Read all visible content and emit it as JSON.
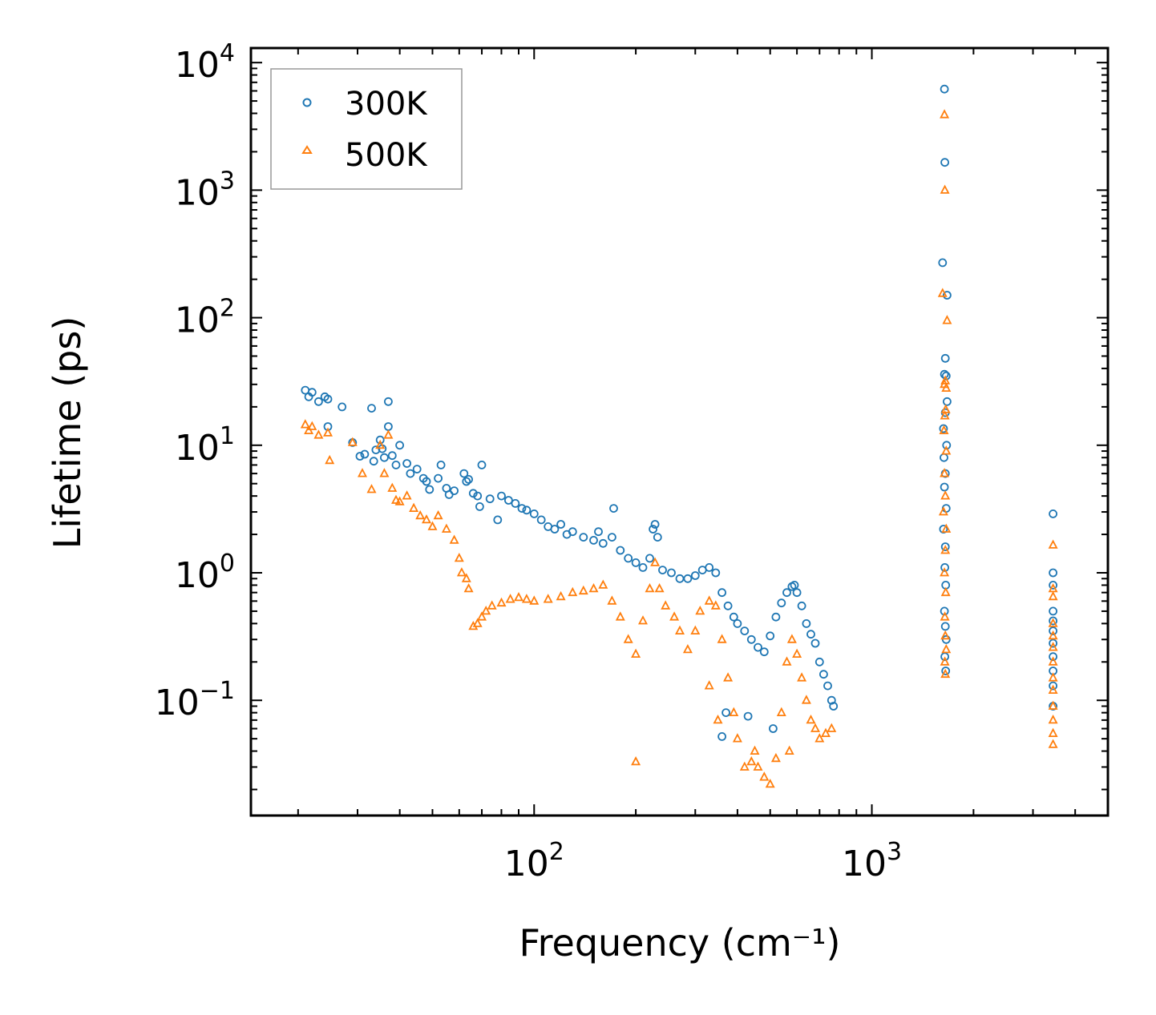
{
  "chart_data": {
    "type": "scatter",
    "title": "",
    "xlabel": "Frequency (cm⁻¹)",
    "ylabel": "Lifetime (ps)",
    "xscale": "log",
    "yscale": "log",
    "xlim": [
      14.5,
      5000
    ],
    "ylim": [
      0.0125,
      13000
    ],
    "x_ticks": [
      {
        "base": "10",
        "exp": "2",
        "value": 100
      },
      {
        "base": "10",
        "exp": "3",
        "value": 1000
      }
    ],
    "y_ticks": [
      {
        "base": "10",
        "exp": "−1",
        "value": 0.1
      },
      {
        "base": "10",
        "exp": "0",
        "value": 1
      },
      {
        "base": "10",
        "exp": "1",
        "value": 10
      },
      {
        "base": "10",
        "exp": "2",
        "value": 100
      },
      {
        "base": "10",
        "exp": "3",
        "value": 1000
      },
      {
        "base": "10",
        "exp": "4",
        "value": 10000
      }
    ],
    "legend_position": "top-left",
    "series": [
      {
        "name": "300K",
        "marker": "circle",
        "color": "#1f77b4",
        "points": [
          [
            21,
            27
          ],
          [
            21.5,
            24
          ],
          [
            22,
            26
          ],
          [
            23,
            22
          ],
          [
            24,
            24
          ],
          [
            24.5,
            23
          ],
          [
            24.5,
            14
          ],
          [
            27,
            20
          ],
          [
            29,
            10.5
          ],
          [
            30.5,
            8.2
          ],
          [
            31.5,
            8.5
          ],
          [
            33,
            19.5
          ],
          [
            33.5,
            7.5
          ],
          [
            34,
            9.2
          ],
          [
            35,
            11
          ],
          [
            35.5,
            9.4
          ],
          [
            36,
            8
          ],
          [
            37,
            14
          ],
          [
            37,
            22
          ],
          [
            38,
            8.3
          ],
          [
            39,
            7
          ],
          [
            40,
            10
          ],
          [
            42,
            7.2
          ],
          [
            43,
            6
          ],
          [
            45,
            6.5
          ],
          [
            47,
            5.5
          ],
          [
            48,
            5.2
          ],
          [
            49,
            4.5
          ],
          [
            52,
            5.5
          ],
          [
            53,
            7
          ],
          [
            55,
            4.6
          ],
          [
            56,
            4.1
          ],
          [
            58,
            4.4
          ],
          [
            62,
            6
          ],
          [
            63,
            5.2
          ],
          [
            64,
            5.4
          ],
          [
            66,
            4.2
          ],
          [
            68,
            4
          ],
          [
            69,
            3.3
          ],
          [
            70,
            7
          ],
          [
            74,
            3.8
          ],
          [
            78,
            2.6
          ],
          [
            80,
            4
          ],
          [
            84,
            3.7
          ],
          [
            88,
            3.5
          ],
          [
            92,
            3.2
          ],
          [
            95,
            3.1
          ],
          [
            100,
            2.9
          ],
          [
            105,
            2.6
          ],
          [
            110,
            2.3
          ],
          [
            115,
            2.2
          ],
          [
            120,
            2.4
          ],
          [
            125,
            2
          ],
          [
            130,
            2.1
          ],
          [
            140,
            1.9
          ],
          [
            150,
            1.8
          ],
          [
            155,
            2.1
          ],
          [
            160,
            1.7
          ],
          [
            170,
            1.9
          ],
          [
            172,
            3.2
          ],
          [
            180,
            1.5
          ],
          [
            190,
            1.3
          ],
          [
            200,
            1.2
          ],
          [
            210,
            1.1
          ],
          [
            220,
            1.3
          ],
          [
            225,
            2.2
          ],
          [
            228,
            2.4
          ],
          [
            232,
            1.9
          ],
          [
            240,
            1.05
          ],
          [
            255,
            1
          ],
          [
            270,
            0.9
          ],
          [
            285,
            0.9
          ],
          [
            300,
            0.95
          ],
          [
            315,
            1.05
          ],
          [
            330,
            1.1
          ],
          [
            345,
            1
          ],
          [
            360,
            0.7
          ],
          [
            375,
            0.55
          ],
          [
            390,
            0.45
          ],
          [
            400,
            0.4
          ],
          [
            420,
            0.35
          ],
          [
            440,
            0.3
          ],
          [
            460,
            0.26
          ],
          [
            480,
            0.24
          ],
          [
            500,
            0.32
          ],
          [
            520,
            0.45
          ],
          [
            540,
            0.58
          ],
          [
            560,
            0.7
          ],
          [
            580,
            0.78
          ],
          [
            590,
            0.8
          ],
          [
            600,
            0.7
          ],
          [
            620,
            0.55
          ],
          [
            640,
            0.4
          ],
          [
            660,
            0.33
          ],
          [
            680,
            0.28
          ],
          [
            700,
            0.2
          ],
          [
            720,
            0.16
          ],
          [
            740,
            0.13
          ],
          [
            760,
            0.1
          ],
          [
            770,
            0.09
          ],
          [
            360,
            0.052
          ],
          [
            370,
            0.08
          ],
          [
            430,
            0.075
          ],
          [
            510,
            0.06
          ],
          [
            1640,
            6200
          ],
          [
            1645,
            1650
          ],
          [
            1620,
            270
          ],
          [
            1670,
            150
          ],
          [
            1650,
            48
          ],
          [
            1640,
            36
          ],
          [
            1660,
            35
          ],
          [
            1670,
            22
          ],
          [
            1650,
            18
          ],
          [
            1630,
            13.5
          ],
          [
            1665,
            10
          ],
          [
            1635,
            8
          ],
          [
            1650,
            6
          ],
          [
            1640,
            4.7
          ],
          [
            1660,
            3.2
          ],
          [
            1630,
            2.2
          ],
          [
            1650,
            1.6
          ],
          [
            1645,
            1.1
          ],
          [
            1655,
            0.8
          ],
          [
            1640,
            0.5
          ],
          [
            1650,
            0.38
          ],
          [
            1660,
            0.3
          ],
          [
            1645,
            0.22
          ],
          [
            1655,
            0.17
          ],
          [
            3440,
            2.9
          ],
          [
            3440,
            1
          ],
          [
            3440,
            0.8
          ],
          [
            3440,
            0.5
          ],
          [
            3440,
            0.42
          ],
          [
            3440,
            0.35
          ],
          [
            3440,
            0.28
          ],
          [
            3440,
            0.22
          ],
          [
            3440,
            0.17
          ],
          [
            3440,
            0.13
          ],
          [
            3440,
            0.09
          ]
        ]
      },
      {
        "name": "500K",
        "marker": "triangle",
        "color": "#ff7f0e",
        "points": [
          [
            21,
            14.5
          ],
          [
            21.5,
            13
          ],
          [
            22,
            14
          ],
          [
            23,
            12
          ],
          [
            24.5,
            12.5
          ],
          [
            24.8,
            7.6
          ],
          [
            29,
            10.5
          ],
          [
            31,
            6
          ],
          [
            33,
            4.5
          ],
          [
            35,
            10
          ],
          [
            36,
            6
          ],
          [
            37,
            12
          ],
          [
            38,
            4.6
          ],
          [
            39,
            3.7
          ],
          [
            40,
            3.6
          ],
          [
            42,
            4
          ],
          [
            44,
            3.2
          ],
          [
            46,
            2.8
          ],
          [
            48,
            2.6
          ],
          [
            50,
            2.3
          ],
          [
            52,
            2.8
          ],
          [
            55,
            2.2
          ],
          [
            58,
            1.8
          ],
          [
            60,
            1.3
          ],
          [
            61,
            1
          ],
          [
            63,
            0.9
          ],
          [
            64,
            0.75
          ],
          [
            66,
            0.38
          ],
          [
            68,
            0.4
          ],
          [
            70,
            0.45
          ],
          [
            72,
            0.5
          ],
          [
            75,
            0.55
          ],
          [
            80,
            0.58
          ],
          [
            85,
            0.62
          ],
          [
            90,
            0.64
          ],
          [
            95,
            0.62
          ],
          [
            100,
            0.6
          ],
          [
            110,
            0.62
          ],
          [
            120,
            0.65
          ],
          [
            130,
            0.7
          ],
          [
            140,
            0.72
          ],
          [
            150,
            0.75
          ],
          [
            160,
            0.8
          ],
          [
            170,
            0.6
          ],
          [
            180,
            0.45
          ],
          [
            190,
            0.3
          ],
          [
            200,
            0.23
          ],
          [
            210,
            0.42
          ],
          [
            220,
            0.75
          ],
          [
            228,
            1.2
          ],
          [
            235,
            0.75
          ],
          [
            245,
            0.55
          ],
          [
            260,
            0.45
          ],
          [
            270,
            0.35
          ],
          [
            285,
            0.25
          ],
          [
            300,
            0.35
          ],
          [
            310,
            0.5
          ],
          [
            330,
            0.6
          ],
          [
            345,
            0.55
          ],
          [
            360,
            0.3
          ],
          [
            375,
            0.15
          ],
          [
            390,
            0.08
          ],
          [
            400,
            0.05
          ],
          [
            420,
            0.03
          ],
          [
            440,
            0.033
          ],
          [
            460,
            0.03
          ],
          [
            480,
            0.025
          ],
          [
            500,
            0.022
          ],
          [
            520,
            0.035
          ],
          [
            540,
            0.08
          ],
          [
            560,
            0.2
          ],
          [
            580,
            0.3
          ],
          [
            600,
            0.23
          ],
          [
            620,
            0.15
          ],
          [
            640,
            0.1
          ],
          [
            660,
            0.07
          ],
          [
            680,
            0.06
          ],
          [
            700,
            0.05
          ],
          [
            730,
            0.055
          ],
          [
            760,
            0.06
          ],
          [
            200,
            0.033
          ],
          [
            330,
            0.13
          ],
          [
            350,
            0.07
          ],
          [
            450,
            0.04
          ],
          [
            570,
            0.04
          ],
          [
            1640,
            3900
          ],
          [
            1645,
            1000
          ],
          [
            1620,
            155
          ],
          [
            1670,
            95
          ],
          [
            1650,
            32
          ],
          [
            1640,
            30
          ],
          [
            1660,
            28
          ],
          [
            1655,
            19
          ],
          [
            1645,
            17
          ],
          [
            1635,
            13
          ],
          [
            1660,
            9
          ],
          [
            1640,
            6
          ],
          [
            1650,
            4
          ],
          [
            1630,
            3
          ],
          [
            1660,
            2.2
          ],
          [
            1650,
            1.5
          ],
          [
            1640,
            1
          ],
          [
            1655,
            0.7
          ],
          [
            1645,
            0.45
          ],
          [
            1650,
            0.32
          ],
          [
            1660,
            0.25
          ],
          [
            1645,
            0.2
          ],
          [
            1650,
            0.16
          ],
          [
            3440,
            1.65
          ],
          [
            3440,
            0.75
          ],
          [
            3440,
            0.65
          ],
          [
            3440,
            0.4
          ],
          [
            3440,
            0.32
          ],
          [
            3440,
            0.26
          ],
          [
            3440,
            0.2
          ],
          [
            3440,
            0.15
          ],
          [
            3440,
            0.12
          ],
          [
            3440,
            0.09
          ],
          [
            3440,
            0.07
          ],
          [
            3440,
            0.055
          ],
          [
            3440,
            0.045
          ]
        ]
      }
    ]
  }
}
